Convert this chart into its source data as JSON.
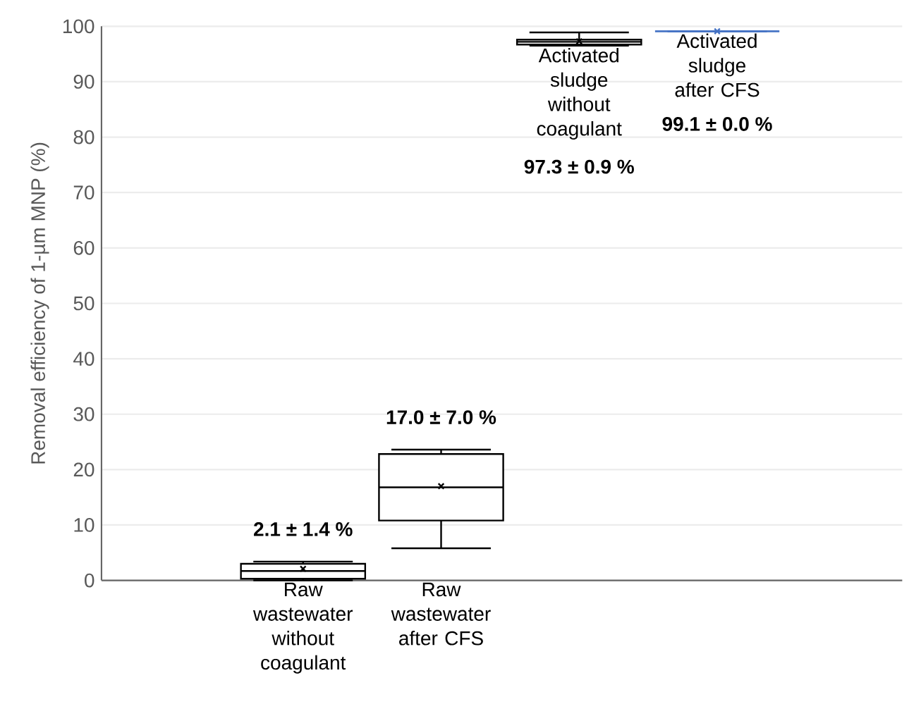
{
  "chart_data": {
    "type": "box",
    "ylabel": "Removal efficiency of 1-µm MNP (%)",
    "categories": [
      "Raw wastewater without coagulant",
      "Raw wastewater after CFS",
      "Activated sludge without coagulant",
      "Activated sludge after CFS"
    ],
    "boxes": [
      {
        "low": 0,
        "q1": 0.3,
        "median": 1.7,
        "q3": 3.0,
        "high": 3.4,
        "mean": 2.1
      },
      {
        "low": 5.8,
        "q1": 10.8,
        "median": 16.8,
        "q3": 22.8,
        "high": 23.6,
        "mean": 17.0
      },
      {
        "low": 96.5,
        "q1": 96.7,
        "median": 97.2,
        "q3": 97.6,
        "high": 98.9,
        "mean": 97.3
      },
      {
        "low": 99.1,
        "q1": 99.1,
        "median": 99.1,
        "q3": 99.1,
        "high": 99.1,
        "mean": 99.1
      }
    ],
    "colors": [
      "#000000",
      "#000000",
      "#000000",
      "#4472c4"
    ],
    "ylim": [
      0,
      100
    ],
    "yticks": [
      0,
      10,
      20,
      30,
      40,
      50,
      60,
      70,
      80,
      90,
      100
    ],
    "grid": "y",
    "marker": "cross",
    "annotations": [
      "2.1 ± 1.4 %",
      "17.0 ± 7.0 %",
      "97.3 ± 0.9 %",
      "99.1 ± 0.0 %"
    ]
  }
}
